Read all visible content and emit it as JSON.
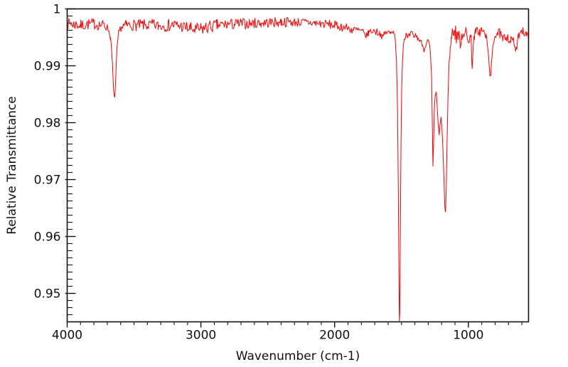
{
  "figure": {
    "background": "#ffffff",
    "kind": "IR transmittance spectrum"
  },
  "chart_data": {
    "type": "line",
    "title": "",
    "xlabel": "Wavenumber (cm-1)",
    "ylabel": "Relative Transmittance",
    "x_range": [
      4000,
      550
    ],
    "y_range": [
      0.945,
      1.0
    ],
    "x_axis_reversed": true,
    "grid": false,
    "legend": null,
    "line_color": "#ff0000",
    "axis_color": "#111111",
    "x_major_ticks": [
      4000,
      3000,
      2000,
      1000
    ],
    "x_major_tick_labels": [
      "4000",
      "3000",
      "2000",
      "1000"
    ],
    "x_minor_tick_interval": 100,
    "y_major_ticks": [
      1,
      0.99,
      0.98,
      0.97,
      0.96,
      0.95
    ],
    "y_major_tick_labels": [
      "1",
      "0.99",
      "0.98",
      "0.97",
      "0.96",
      "0.95"
    ],
    "y_minor_tick_interval": 0.00125,
    "noise_seed": 7,
    "sample_step_cm1": 6,
    "series": [
      {
        "name": "spectrum",
        "note": "anchor points: [wavenumber_cm-1, transmittance, local_noise_amplitude]",
        "points": [
          [
            4000,
            0.9974,
            0.001
          ],
          [
            3950,
            0.9973,
            0.001
          ],
          [
            3900,
            0.9971,
            0.001
          ],
          [
            3850,
            0.9973,
            0.001
          ],
          [
            3800,
            0.9974,
            0.001
          ],
          [
            3760,
            0.9972,
            0.001
          ],
          [
            3720,
            0.9971,
            0.0009
          ],
          [
            3695,
            0.9966,
            0.0006
          ],
          [
            3675,
            0.9948,
            0.0004
          ],
          [
            3662,
            0.9905,
            0.0003
          ],
          [
            3652,
            0.9852,
            0.0002
          ],
          [
            3644,
            0.9845,
            0.0002
          ],
          [
            3637,
            0.9875,
            0.0003
          ],
          [
            3628,
            0.993,
            0.0004
          ],
          [
            3615,
            0.9958,
            0.0005
          ],
          [
            3598,
            0.9968,
            0.0008
          ],
          [
            3560,
            0.9971,
            0.001
          ],
          [
            3520,
            0.9972,
            0.001
          ],
          [
            3480,
            0.9971,
            0.001
          ],
          [
            3440,
            0.9972,
            0.001
          ],
          [
            3400,
            0.9971,
            0.001
          ],
          [
            3360,
            0.9972,
            0.001
          ],
          [
            3320,
            0.997,
            0.001
          ],
          [
            3280,
            0.9971,
            0.0011
          ],
          [
            3240,
            0.9971,
            0.0011
          ],
          [
            3200,
            0.9972,
            0.0011
          ],
          [
            3160,
            0.997,
            0.0011
          ],
          [
            3120,
            0.9968,
            0.0011
          ],
          [
            3080,
            0.9965,
            0.0012
          ],
          [
            3040,
            0.9963,
            0.0012
          ],
          [
            3000,
            0.9964,
            0.0012
          ],
          [
            2960,
            0.9967,
            0.0012
          ],
          [
            2920,
            0.9969,
            0.0011
          ],
          [
            2880,
            0.9971,
            0.0011
          ],
          [
            2840,
            0.9972,
            0.001
          ],
          [
            2800,
            0.9973,
            0.001
          ],
          [
            2750,
            0.9973,
            0.001
          ],
          [
            2700,
            0.9974,
            0.001
          ],
          [
            2650,
            0.9974,
            0.0009
          ],
          [
            2600,
            0.9975,
            0.0009
          ],
          [
            2550,
            0.9975,
            0.0009
          ],
          [
            2500,
            0.9976,
            0.0009
          ],
          [
            2450,
            0.9976,
            0.0009
          ],
          [
            2400,
            0.9977,
            0.0009
          ],
          [
            2350,
            0.9977,
            0.0009
          ],
          [
            2300,
            0.9977,
            0.0008
          ],
          [
            2250,
            0.9976,
            0.0008
          ],
          [
            2200,
            0.9976,
            0.0008
          ],
          [
            2150,
            0.9975,
            0.0008
          ],
          [
            2100,
            0.9974,
            0.0008
          ],
          [
            2050,
            0.9973,
            0.0008
          ],
          [
            2000,
            0.9971,
            0.0008
          ],
          [
            1950,
            0.9969,
            0.0008
          ],
          [
            1900,
            0.9966,
            0.0008
          ],
          [
            1860,
            0.9963,
            0.0008
          ],
          [
            1820,
            0.9962,
            0.0008
          ],
          [
            1790,
            0.9959,
            0.0007
          ],
          [
            1765,
            0.9952,
            0.0005
          ],
          [
            1748,
            0.9958,
            0.0006
          ],
          [
            1720,
            0.9962,
            0.0007
          ],
          [
            1692,
            0.996,
            0.0007
          ],
          [
            1664,
            0.9958,
            0.0006
          ],
          [
            1642,
            0.995,
            0.0005
          ],
          [
            1626,
            0.9956,
            0.0006
          ],
          [
            1606,
            0.996,
            0.0006
          ],
          [
            1584,
            0.9957,
            0.0005
          ],
          [
            1562,
            0.9962,
            0.0004
          ],
          [
            1548,
            0.9951,
            0.0003
          ],
          [
            1538,
            0.9912,
            0.0002
          ],
          [
            1530,
            0.9825,
            0.0001
          ],
          [
            1524,
            0.9685,
            0.0001
          ],
          [
            1519,
            0.9525,
            0.0001
          ],
          [
            1516,
            0.9452,
            0.0001
          ],
          [
            1513,
            0.9468,
            0.0001
          ],
          [
            1509,
            0.9598,
            0.0001
          ],
          [
            1504,
            0.9758,
            0.0001
          ],
          [
            1499,
            0.9858,
            0.0002
          ],
          [
            1493,
            0.9908,
            0.0002
          ],
          [
            1486,
            0.9936,
            0.0003
          ],
          [
            1478,
            0.9949,
            0.0004
          ],
          [
            1466,
            0.9954,
            0.0006
          ],
          [
            1452,
            0.9947,
            0.0006
          ],
          [
            1438,
            0.9954,
            0.0006
          ],
          [
            1424,
            0.9957,
            0.0006
          ],
          [
            1410,
            0.9951,
            0.0005
          ],
          [
            1396,
            0.9954,
            0.0005
          ],
          [
            1380,
            0.9949,
            0.0005
          ],
          [
            1362,
            0.9944,
            0.0005
          ],
          [
            1346,
            0.9939,
            0.0004
          ],
          [
            1332,
            0.9927,
            0.0003
          ],
          [
            1318,
            0.9937,
            0.0004
          ],
          [
            1304,
            0.9944,
            0.0004
          ],
          [
            1292,
            0.9939,
            0.0004
          ],
          [
            1283,
            0.9918,
            0.0003
          ],
          [
            1275,
            0.9878,
            0.0002
          ],
          [
            1269,
            0.9788,
            0.0002
          ],
          [
            1265,
            0.9723,
            0.0001
          ],
          [
            1261,
            0.9758,
            0.0002
          ],
          [
            1255,
            0.9818,
            0.0002
          ],
          [
            1248,
            0.9848,
            0.0002
          ],
          [
            1240,
            0.9853,
            0.0002
          ],
          [
            1232,
            0.9822,
            0.0002
          ],
          [
            1225,
            0.9792,
            0.0002
          ],
          [
            1218,
            0.978,
            0.0002
          ],
          [
            1211,
            0.9798,
            0.0002
          ],
          [
            1205,
            0.981,
            0.0002
          ],
          [
            1198,
            0.9792,
            0.0002
          ],
          [
            1190,
            0.9752,
            0.0002
          ],
          [
            1183,
            0.9702,
            0.0001
          ],
          [
            1176,
            0.9652,
            0.0001
          ],
          [
            1171,
            0.9643,
            0.0001
          ],
          [
            1166,
            0.9678,
            0.0001
          ],
          [
            1160,
            0.9758,
            0.0002
          ],
          [
            1152,
            0.9848,
            0.0002
          ],
          [
            1145,
            0.9902,
            0.0003
          ],
          [
            1136,
            0.9928,
            0.0005
          ],
          [
            1128,
            0.9948,
            0.0008
          ],
          [
            1120,
            0.9958,
            0.0012
          ],
          [
            1110,
            0.9963,
            0.0014
          ],
          [
            1100,
            0.9958,
            0.0015
          ],
          [
            1090,
            0.9953,
            0.0015
          ],
          [
            1080,
            0.9958,
            0.0015
          ],
          [
            1070,
            0.9948,
            0.0015
          ],
          [
            1060,
            0.9944,
            0.0014
          ],
          [
            1050,
            0.9953,
            0.0014
          ],
          [
            1040,
            0.9958,
            0.0014
          ],
          [
            1030,
            0.9963,
            0.0013
          ],
          [
            1020,
            0.9958,
            0.0013
          ],
          [
            1010,
            0.9948,
            0.0013
          ],
          [
            1000,
            0.9944,
            0.0012
          ],
          [
            990,
            0.9953,
            0.001
          ],
          [
            980,
            0.9948,
            0.0008
          ],
          [
            972,
            0.9897,
            0.0004
          ],
          [
            965,
            0.9928,
            0.0006
          ],
          [
            955,
            0.9953,
            0.0008
          ],
          [
            945,
            0.9958,
            0.0009
          ],
          [
            930,
            0.9963,
            0.0009
          ],
          [
            915,
            0.9958,
            0.0009
          ],
          [
            900,
            0.9963,
            0.0009
          ],
          [
            885,
            0.9958,
            0.0008
          ],
          [
            870,
            0.9953,
            0.0007
          ],
          [
            858,
            0.9938,
            0.0005
          ],
          [
            848,
            0.9913,
            0.0003
          ],
          [
            839,
            0.9884,
            0.0002
          ],
          [
            833,
            0.9881,
            0.0002
          ],
          [
            827,
            0.9903,
            0.0003
          ],
          [
            818,
            0.9933,
            0.0004
          ],
          [
            808,
            0.9948,
            0.0006
          ],
          [
            795,
            0.9956,
            0.0008
          ],
          [
            780,
            0.9958,
            0.0009
          ],
          [
            765,
            0.9956,
            0.0009
          ],
          [
            750,
            0.9948,
            0.0009
          ],
          [
            740,
            0.9944,
            0.0008
          ],
          [
            728,
            0.9951,
            0.0008
          ],
          [
            715,
            0.9953,
            0.0009
          ],
          [
            700,
            0.9948,
            0.0009
          ],
          [
            685,
            0.9944,
            0.0008
          ],
          [
            670,
            0.9947,
            0.0008
          ],
          [
            655,
            0.9937,
            0.0006
          ],
          [
            645,
            0.9924,
            0.0004
          ],
          [
            637,
            0.9934,
            0.0005
          ],
          [
            625,
            0.9953,
            0.0007
          ],
          [
            610,
            0.9963,
            0.0008
          ],
          [
            595,
            0.9963,
            0.0008
          ],
          [
            580,
            0.9958,
            0.0008
          ],
          [
            565,
            0.9953,
            0.0008
          ],
          [
            550,
            0.9949,
            0.0007
          ]
        ]
      }
    ]
  }
}
